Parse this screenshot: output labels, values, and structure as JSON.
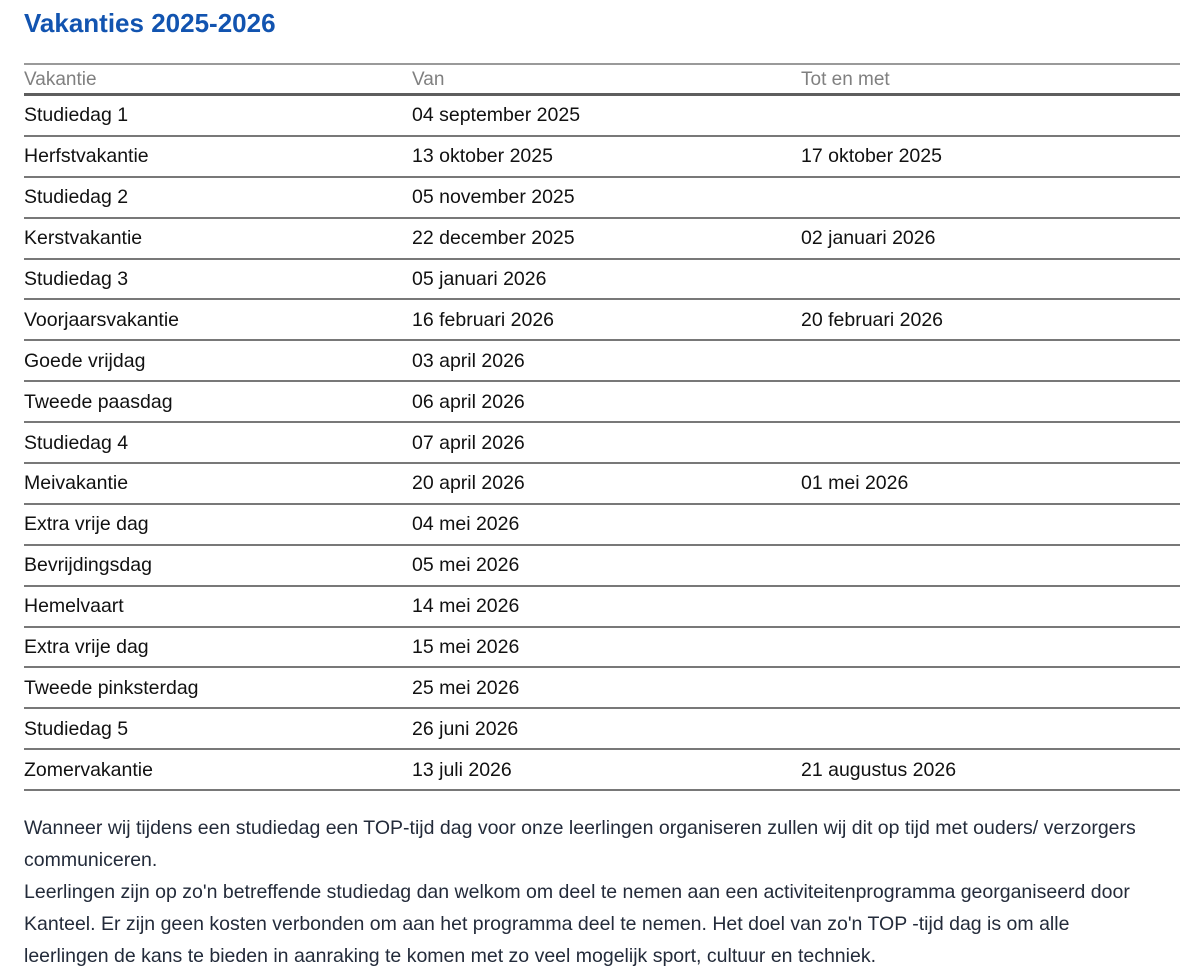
{
  "page": {
    "title": "Vakanties 2025-2026"
  },
  "colors": {
    "title_blue": "#1254b0",
    "header_gray": "#808080",
    "rule_gray": "#787878",
    "header_rule_dark": "#5e5e5e",
    "body_text": "#111111",
    "footer_text": "#232b3a"
  },
  "table": {
    "columns": [
      "Vakantie",
      "Van",
      "Tot en met"
    ],
    "rows": [
      {
        "name": "Studiedag 1",
        "van": "04 september 2025",
        "tot": ""
      },
      {
        "name": "Herfstvakantie",
        "van": "13 oktober 2025",
        "tot": "17 oktober 2025"
      },
      {
        "name": "Studiedag 2",
        "van": "05 november 2025",
        "tot": ""
      },
      {
        "name": "Kerstvakantie",
        "van": "22 december 2025",
        "tot": "02 januari 2026"
      },
      {
        "name": "Studiedag 3",
        "van": "05 januari 2026",
        "tot": ""
      },
      {
        "name": "Voorjaarsvakantie",
        "van": "16 februari 2026",
        "tot": "20 februari 2026"
      },
      {
        "name": "Goede vrijdag",
        "van": "03 april 2026",
        "tot": ""
      },
      {
        "name": "Tweede paasdag",
        "van": "06 april 2026",
        "tot": ""
      },
      {
        "name": "Studiedag 4",
        "van": "07 april 2026",
        "tot": ""
      },
      {
        "name": "Meivakantie",
        "van": "20 april 2026",
        "tot": "01 mei 2026"
      },
      {
        "name": "Extra vrije dag",
        "van": "04 mei 2026",
        "tot": ""
      },
      {
        "name": "Bevrijdingsdag",
        "van": "05 mei 2026",
        "tot": ""
      },
      {
        "name": "Hemelvaart",
        "van": "14 mei 2026",
        "tot": ""
      },
      {
        "name": "Extra vrije dag",
        "van": "15 mei 2026",
        "tot": ""
      },
      {
        "name": "Tweede pinksterdag",
        "van": "25 mei 2026",
        "tot": ""
      },
      {
        "name": "Studiedag 5",
        "van": "26 juni 2026",
        "tot": ""
      },
      {
        "name": "Zomervakantie",
        "van": "13 juli 2026",
        "tot": "21 augustus 2026"
      }
    ]
  },
  "footer": {
    "lines": [
      "Wanneer wij tijdens een studiedag een TOP-tijd dag voor onze leerlingen organiseren zullen wij dit op tijd met ouders/ verzorgers",
      "communiceren.",
      "Leerlingen zijn op zo'n betreffende studiedag dan welkom om deel te nemen aan een activiteitenprogramma georganiseerd door",
      "Kanteel. Er zijn geen kosten verbonden om aan het programma deel te nemen. Het doel van zo'n TOP -tijd dag is om alle",
      "leerlingen de kans te bieden in aanraking te komen met zo veel mogelijk sport, cultuur en techniek."
    ]
  }
}
